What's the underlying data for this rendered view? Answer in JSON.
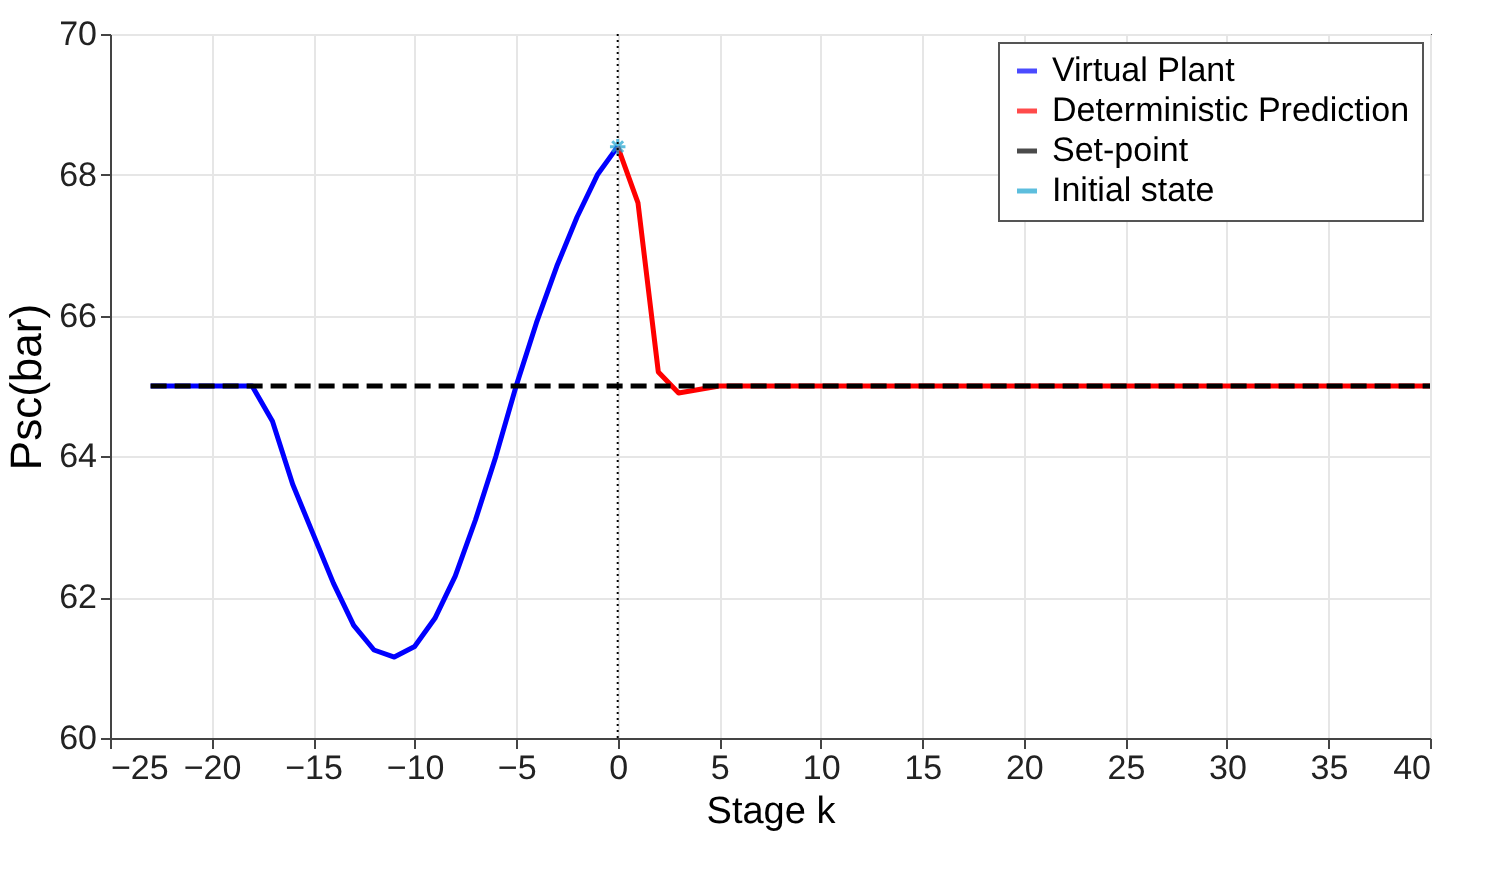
{
  "chart_data": {
    "type": "line",
    "xlabel": "Stage k",
    "ylabel": "Psc(bar)",
    "xlim": [
      -25,
      40
    ],
    "xticks": [
      -25,
      -20,
      -15,
      -10,
      -5,
      0,
      5,
      10,
      15,
      20,
      25,
      30,
      35,
      40
    ],
    "ylim": [
      60,
      70
    ],
    "yticks": [
      60,
      62,
      64,
      66,
      68,
      70
    ],
    "grid": true,
    "legend": "top right",
    "series": [
      {
        "name": "Virtual Plant",
        "color": "#0000ff",
        "line_style": "solid",
        "x": [
          -23,
          -22,
          -21,
          -20,
          -19,
          -18,
          -17,
          -16,
          -15,
          -14,
          -13,
          -12,
          -11,
          -10,
          -9,
          -8,
          -7,
          -6,
          -5,
          -4,
          -3,
          -2,
          -1,
          0
        ],
        "values": [
          65,
          65,
          65,
          65,
          65,
          65,
          64.5,
          63.6,
          62.9,
          62.2,
          61.6,
          61.25,
          61.15,
          61.3,
          61.7,
          62.3,
          63.1,
          64.0,
          65.0,
          65.9,
          66.7,
          67.4,
          68.0,
          68.4
        ]
      },
      {
        "name": "Deterministic Prediction",
        "color": "#ff0000",
        "line_style": "solid",
        "x": [
          0,
          1,
          2,
          3,
          4,
          5,
          10,
          20,
          30,
          40
        ],
        "values": [
          68.4,
          67.6,
          65.2,
          64.9,
          64.95,
          65,
          65,
          65,
          65,
          65
        ]
      },
      {
        "name": "Set-point",
        "color": "#000000",
        "line_style": "dashed",
        "x": [
          -23,
          40
        ],
        "values": [
          65,
          65
        ]
      },
      {
        "name": "Initial state",
        "color": "#1aa3d0",
        "type": "scatter",
        "marker": "cross",
        "x": [
          0
        ],
        "values": [
          68.4
        ]
      }
    ],
    "ref_lines": [
      {
        "axis": "x",
        "value": 0,
        "color": "#000000",
        "line_style": "dotted"
      }
    ]
  }
}
